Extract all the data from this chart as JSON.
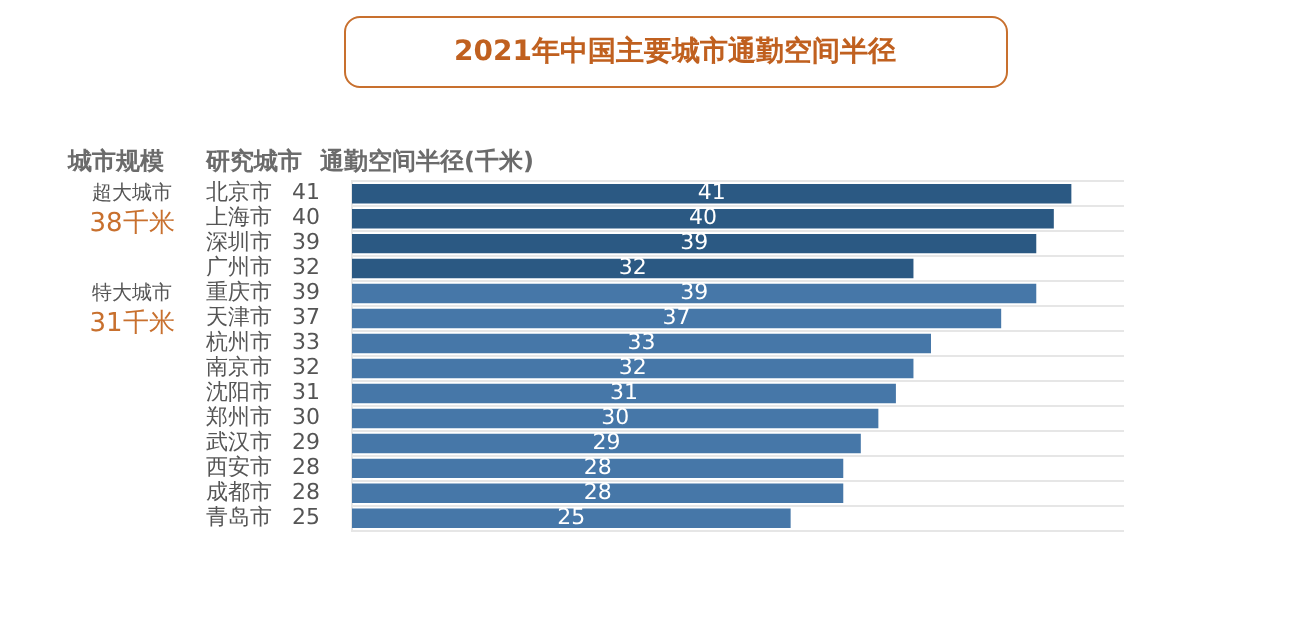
{
  "chart_data": {
    "type": "bar",
    "orientation": "horizontal",
    "title": "2021年中国主要城市通勤空间半径",
    "ylabel": "研究城市",
    "xlabel": "通勤空间半径(千米)",
    "categories": [
      "北京市",
      "上海市",
      "深圳市",
      "广州市",
      "重庆市",
      "天津市",
      "杭州市",
      "南京市",
      "沈阳市",
      "郑州市",
      "武汉市",
      "西安市",
      "成都市",
      "青岛市"
    ],
    "values": [
      41,
      40,
      39,
      32,
      39,
      37,
      33,
      32,
      31,
      30,
      29,
      28,
      28,
      25
    ],
    "colors": [
      "#2b5983",
      "#2b5983",
      "#2b5983",
      "#2b5983",
      "#4677a8",
      "#4677a8",
      "#4677a8",
      "#4677a8",
      "#4677a8",
      "#4677a8",
      "#4677a8",
      "#4677a8",
      "#4677a8",
      "#4677a8"
    ],
    "xlim": [
      0,
      44
    ],
    "tick_labels": "y",
    "grid": "y",
    "data_labels": true,
    "legend": false,
    "annotations": [
      "城市规模",
      "超大城市",
      "38千米",
      "特大城市",
      "31千米",
      "41",
      "40",
      "39",
      "32",
      "39",
      "37",
      "33",
      "32",
      "31",
      "30",
      "29",
      "28",
      "28",
      "25"
    ]
  }
}
